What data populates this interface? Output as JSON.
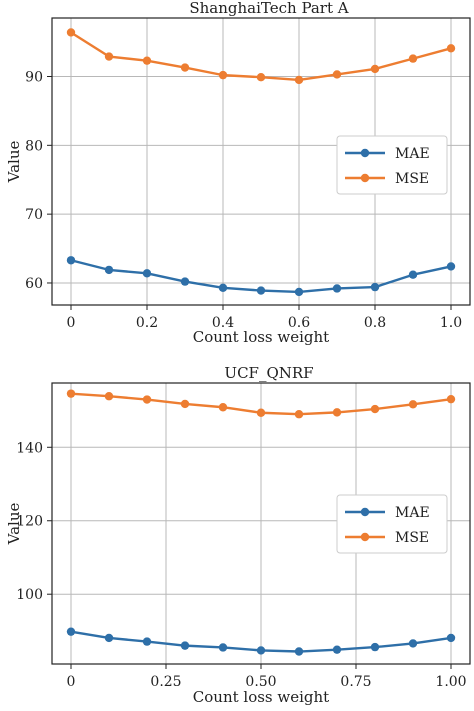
{
  "colors": {
    "MAE": "#2e6fa8",
    "MSE": "#ed7d31"
  },
  "chart_data": [
    {
      "type": "line",
      "title": "ShanghaiTech Part A",
      "xlabel": "Count loss weight",
      "ylabel": "Value",
      "x": [
        0,
        0.1,
        0.2,
        0.3,
        0.4,
        0.5,
        0.6,
        0.7,
        0.8,
        0.9,
        1.0
      ],
      "xlim": [
        -0.05,
        1.05
      ],
      "ylim": [
        56.8,
        98.5
      ],
      "xticks": [
        0,
        0.2,
        0.4,
        0.6,
        0.8,
        1.0
      ],
      "xtick_labels": [
        "0",
        "0.2",
        "0.4",
        "0.6",
        "0.8",
        "1.0"
      ],
      "yticks": [
        60,
        70,
        80,
        90
      ],
      "ytick_labels": [
        "60",
        "70",
        "80",
        "90"
      ],
      "grid": true,
      "legend_position": "center-right",
      "series": [
        {
          "name": "MAE",
          "values": [
            63.3,
            61.9,
            61.4,
            60.2,
            59.3,
            58.9,
            58.7,
            59.2,
            59.4,
            61.2,
            62.4
          ]
        },
        {
          "name": "MSE",
          "values": [
            96.4,
            92.9,
            92.3,
            91.3,
            90.2,
            89.9,
            89.5,
            90.3,
            91.1,
            92.6,
            94.1
          ]
        }
      ]
    },
    {
      "type": "line",
      "title": "UCF_QNRF",
      "xlabel": "Count loss weight",
      "ylabel": "Value",
      "x": [
        0,
        0.1,
        0.2,
        0.3,
        0.4,
        0.5,
        0.6,
        0.7,
        0.8,
        0.9,
        1.0
      ],
      "xlim": [
        -0.05,
        1.05
      ],
      "ylim": [
        81.0,
        157.5
      ],
      "xticks": [
        0,
        0.25,
        0.5,
        0.75,
        1.0
      ],
      "xtick_labels": [
        "0",
        "0.25",
        "0.50",
        "0.75",
        "1.00"
      ],
      "yticks": [
        100,
        120,
        140
      ],
      "ytick_labels": [
        "100",
        "120",
        "140"
      ],
      "grid": true,
      "legend_position": "center-right",
      "series": [
        {
          "name": "MAE",
          "values": [
            89.8,
            88.1,
            87.1,
            86.0,
            85.5,
            84.7,
            84.4,
            84.9,
            85.6,
            86.6,
            88.1
          ]
        },
        {
          "name": "MSE",
          "values": [
            154.6,
            153.9,
            153.0,
            151.8,
            150.9,
            149.4,
            149.0,
            149.5,
            150.4,
            151.7,
            153.1
          ]
        }
      ]
    }
  ]
}
